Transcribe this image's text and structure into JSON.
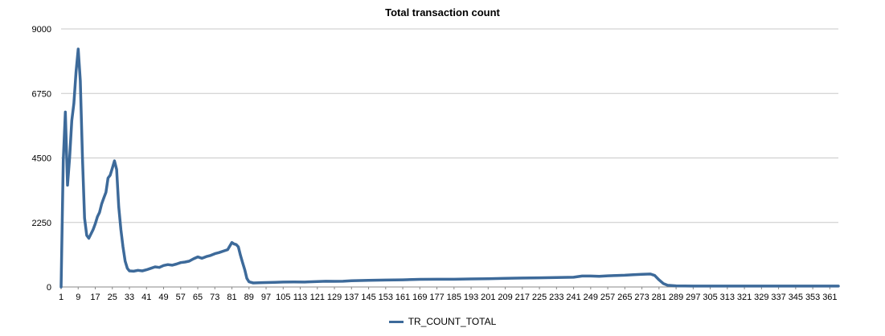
{
  "chart_data": {
    "type": "line",
    "title": "Total transaction count",
    "xlabel": "",
    "ylabel": "",
    "ylim": [
      0,
      9000
    ],
    "yticks": [
      0,
      2250,
      4500,
      6750,
      9000
    ],
    "xlim": [
      1,
      365
    ],
    "xticks": [
      1,
      9,
      17,
      25,
      33,
      41,
      49,
      57,
      65,
      73,
      81,
      89,
      97,
      105,
      113,
      121,
      129,
      137,
      145,
      153,
      161,
      169,
      177,
      185,
      193,
      201,
      209,
      217,
      225,
      233,
      241,
      249,
      257,
      265,
      273,
      281,
      289,
      297,
      305,
      313,
      321,
      329,
      337,
      345,
      353,
      361
    ],
    "grid": true,
    "legend_position": "bottom",
    "series": [
      {
        "name": "TR_COUNT_TOTAL",
        "color": "#3d6a9a",
        "points": [
          [
            1,
            0
          ],
          [
            2,
            4400
          ],
          [
            3,
            6100
          ],
          [
            4,
            3550
          ],
          [
            5,
            4500
          ],
          [
            6,
            5800
          ],
          [
            7,
            6400
          ],
          [
            8,
            7500
          ],
          [
            9,
            8300
          ],
          [
            10,
            7200
          ],
          [
            11,
            4500
          ],
          [
            12,
            2400
          ],
          [
            13,
            1800
          ],
          [
            14,
            1700
          ],
          [
            15,
            1850
          ],
          [
            16,
            2000
          ],
          [
            17,
            2200
          ],
          [
            18,
            2450
          ],
          [
            19,
            2600
          ],
          [
            20,
            2900
          ],
          [
            21,
            3100
          ],
          [
            22,
            3300
          ],
          [
            23,
            3800
          ],
          [
            24,
            3900
          ],
          [
            25,
            4150
          ],
          [
            26,
            4400
          ],
          [
            27,
            4100
          ],
          [
            28,
            2800
          ],
          [
            29,
            2000
          ],
          [
            30,
            1400
          ],
          [
            31,
            900
          ],
          [
            32,
            650
          ],
          [
            33,
            560
          ],
          [
            35,
            550
          ],
          [
            37,
            580
          ],
          [
            39,
            560
          ],
          [
            41,
            600
          ],
          [
            43,
            650
          ],
          [
            45,
            700
          ],
          [
            47,
            680
          ],
          [
            49,
            750
          ],
          [
            51,
            780
          ],
          [
            53,
            760
          ],
          [
            55,
            800
          ],
          [
            57,
            850
          ],
          [
            59,
            870
          ],
          [
            61,
            900
          ],
          [
            63,
            980
          ],
          [
            65,
            1050
          ],
          [
            67,
            1000
          ],
          [
            69,
            1060
          ],
          [
            71,
            1100
          ],
          [
            73,
            1160
          ],
          [
            75,
            1200
          ],
          [
            77,
            1250
          ],
          [
            79,
            1300
          ],
          [
            81,
            1550
          ],
          [
            82,
            1500
          ],
          [
            83,
            1480
          ],
          [
            84,
            1400
          ],
          [
            85,
            1100
          ],
          [
            86,
            850
          ],
          [
            87,
            600
          ],
          [
            88,
            300
          ],
          [
            89,
            180
          ],
          [
            91,
            140
          ],
          [
            95,
            150
          ],
          [
            101,
            160
          ],
          [
            105,
            170
          ],
          [
            110,
            175
          ],
          [
            115,
            170
          ],
          [
            121,
            190
          ],
          [
            125,
            200
          ],
          [
            129,
            195
          ],
          [
            133,
            200
          ],
          [
            137,
            215
          ],
          [
            141,
            225
          ],
          [
            145,
            230
          ],
          [
            153,
            240
          ],
          [
            161,
            250
          ],
          [
            169,
            265
          ],
          [
            177,
            270
          ],
          [
            185,
            270
          ],
          [
            193,
            280
          ],
          [
            201,
            290
          ],
          [
            209,
            300
          ],
          [
            217,
            310
          ],
          [
            225,
            320
          ],
          [
            233,
            330
          ],
          [
            241,
            340
          ],
          [
            245,
            380
          ],
          [
            249,
            380
          ],
          [
            253,
            370
          ],
          [
            257,
            390
          ],
          [
            261,
            400
          ],
          [
            265,
            410
          ],
          [
            269,
            430
          ],
          [
            273,
            440
          ],
          [
            277,
            450
          ],
          [
            279,
            400
          ],
          [
            281,
            250
          ],
          [
            283,
            120
          ],
          [
            285,
            60
          ],
          [
            289,
            40
          ],
          [
            297,
            30
          ],
          [
            305,
            30
          ],
          [
            313,
            30
          ],
          [
            321,
            30
          ],
          [
            329,
            30
          ],
          [
            337,
            30
          ],
          [
            345,
            30
          ],
          [
            353,
            30
          ],
          [
            361,
            30
          ],
          [
            365,
            30
          ]
        ]
      }
    ]
  }
}
